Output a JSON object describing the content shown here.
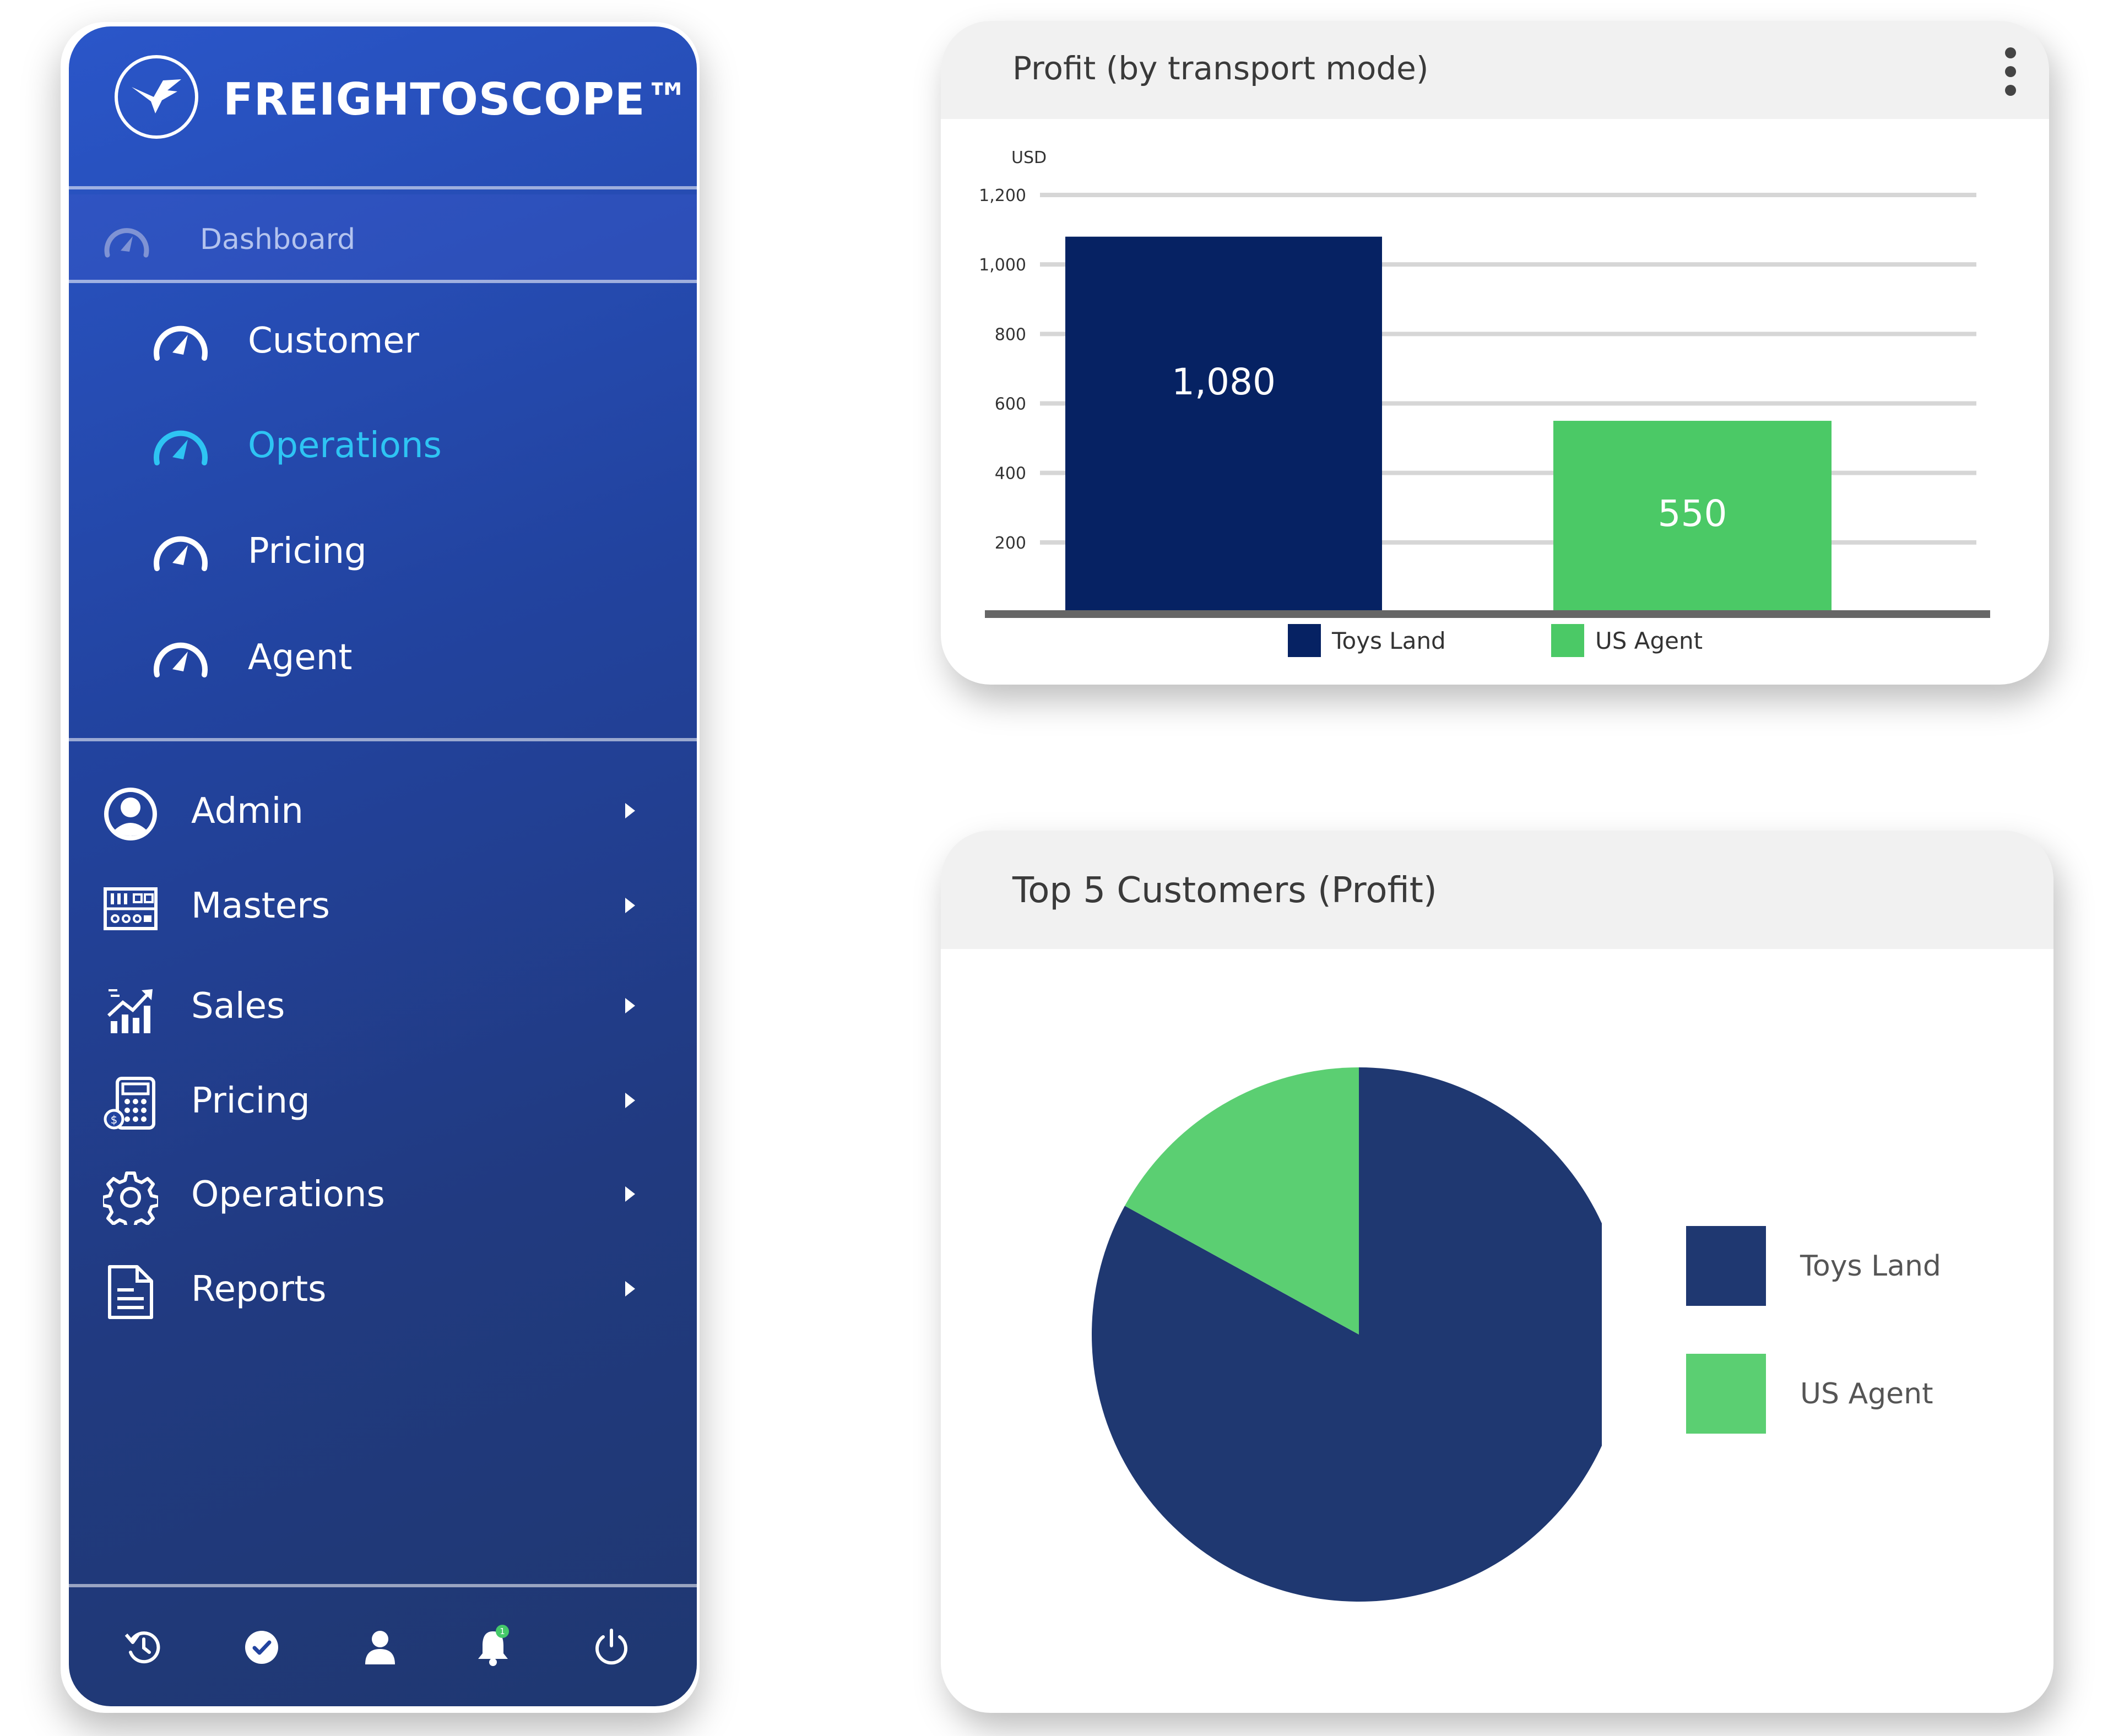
{
  "sidebar": {
    "brand": "FREIGHTOSCOPE™",
    "dashboard_label": "Dashboard",
    "sub_items": [
      {
        "label": "Customer",
        "active": false
      },
      {
        "label": "Operations",
        "active": true
      },
      {
        "label": "Pricing",
        "active": false
      },
      {
        "label": "Agent",
        "active": false
      }
    ],
    "main_items": [
      {
        "label": "Admin",
        "icon": "user-circle-icon"
      },
      {
        "label": "Masters",
        "icon": "control-panel-icon"
      },
      {
        "label": "Sales",
        "icon": "growth-chart-icon"
      },
      {
        "label": "Pricing",
        "icon": "calculator-icon"
      },
      {
        "label": "Operations",
        "icon": "gear-icon"
      },
      {
        "label": "Reports",
        "icon": "document-icon"
      }
    ],
    "footer_icons": [
      "history-icon",
      "verified-badge-icon",
      "user-icon",
      "bell-icon",
      "power-icon"
    ],
    "notification_count": "1"
  },
  "colors": {
    "sidebar_gradient_start": "#2a56c9",
    "sidebar_gradient_end": "#1f3871",
    "active_item": "#2ec4f3",
    "series_dark": "#062263",
    "series_green": "#4bc966",
    "pie_dark": "#1f3871",
    "pie_green": "#5bcf72"
  },
  "chart_data": [
    {
      "type": "bar",
      "title": "Profit (by transport mode)",
      "ylabel": "USD",
      "yticks": [
        "200",
        "400",
        "600",
        "800",
        "1,000",
        "1,200"
      ],
      "ylim": [
        0,
        1200
      ],
      "grid": true,
      "legend_position": "bottom",
      "series": [
        {
          "name": "Toys Land",
          "value": 1080,
          "label": "1,080",
          "color": "#062263"
        },
        {
          "name": "US Agent",
          "value": 550,
          "label": "550",
          "color": "#4bc966"
        }
      ]
    },
    {
      "type": "pie",
      "title": "Top 5 Customers (Profit)",
      "legend_position": "right",
      "slices": [
        {
          "name": "Toys Land",
          "value": 83,
          "color": "#1f3871"
        },
        {
          "name": "US Agent",
          "value": 17,
          "color": "#5bcf72"
        }
      ]
    }
  ]
}
